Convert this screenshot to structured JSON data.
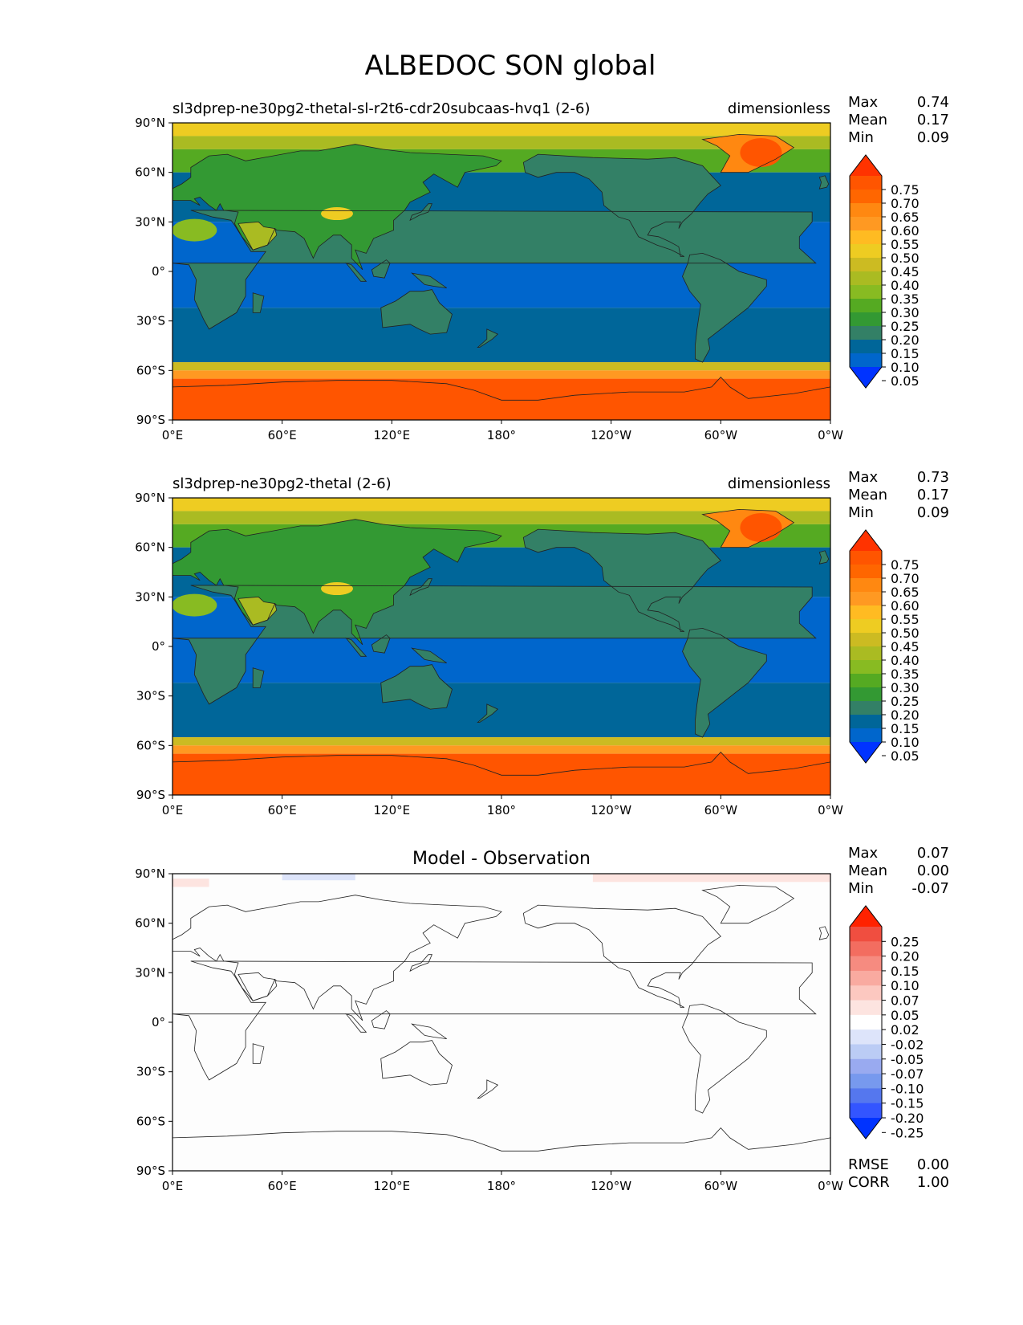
{
  "title": "ALBEDOC SON global",
  "colors": {
    "seq_levels": [
      "#0033ff",
      "#0066cc",
      "#006699",
      "#338066",
      "#339933",
      "#55aa22",
      "#88bb22",
      "#aabb22",
      "#ccbb22",
      "#eecc22",
      "#ffbb22",
      "#ff9922",
      "#ff8811",
      "#ff6600",
      "#ff5500",
      "#ff3300"
    ],
    "diff_levels": [
      "#0033ff",
      "#3355ff",
      "#5577ee",
      "#7799ee",
      "#99aaf0",
      "#bbccf5",
      "#dde4fa",
      "#ffffff",
      "#fde4e0",
      "#fcc8c0",
      "#f9aaa0",
      "#f68b80",
      "#f36d60",
      "#f04e40",
      "#ff2200"
    ]
  },
  "axes": {
    "lat_ticks": [
      "90°N",
      "60°N",
      "30°N",
      "0°",
      "30°S",
      "60°S",
      "90°S"
    ],
    "lon_ticks": [
      "0°E",
      "60°E",
      "120°E",
      "180°",
      "120°W",
      "60°W",
      "0°W"
    ]
  },
  "chart_data": [
    {
      "type": "heatmap",
      "title": "sl3dprep-ne30pg2-thetal-sl-r2t6-cdr20subcaas-hvq1 (2-6)",
      "units": "dimensionless",
      "stats": [
        {
          "label": "Max",
          "value": "0.74"
        },
        {
          "label": "Mean",
          "value": "0.17"
        },
        {
          "label": "Min",
          "value": "0.09"
        }
      ],
      "colorbar_ticks": [
        "0.75",
        "0.70",
        "0.65",
        "0.60",
        "0.55",
        "0.50",
        "0.45",
        "0.40",
        "0.35",
        "0.30",
        "0.25",
        "0.20",
        "0.15",
        "0.10",
        "0.05"
      ],
      "x_range": [
        0,
        360
      ],
      "y_range": [
        -90,
        90
      ]
    },
    {
      "type": "heatmap",
      "title": "sl3dprep-ne30pg2-thetal (2-6)",
      "units": "dimensionless",
      "stats": [
        {
          "label": "Max",
          "value": "0.73"
        },
        {
          "label": "Mean",
          "value": "0.17"
        },
        {
          "label": "Min",
          "value": "0.09"
        }
      ],
      "colorbar_ticks": [
        "0.75",
        "0.70",
        "0.65",
        "0.60",
        "0.55",
        "0.50",
        "0.45",
        "0.40",
        "0.35",
        "0.30",
        "0.25",
        "0.20",
        "0.15",
        "0.10",
        "0.05"
      ],
      "x_range": [
        0,
        360
      ],
      "y_range": [
        -90,
        90
      ]
    },
    {
      "type": "heatmap",
      "title": "Model - Observation",
      "units": "",
      "stats": [
        {
          "label": "Max",
          "value": "0.07"
        },
        {
          "label": "Mean",
          "value": "0.00"
        },
        {
          "label": "Min",
          "value": "-0.07"
        }
      ],
      "colorbar_ticks": [
        "0.25",
        "0.20",
        "0.15",
        "0.10",
        "0.07",
        "0.05",
        "0.02",
        "-0.02",
        "-0.05",
        "-0.07",
        "-0.10",
        "-0.15",
        "-0.20",
        "-0.25"
      ],
      "metrics": [
        {
          "label": "RMSE",
          "value": "0.00"
        },
        {
          "label": "CORR",
          "value": "1.00"
        }
      ],
      "x_range": [
        0,
        360
      ],
      "y_range": [
        -90,
        90
      ]
    }
  ]
}
